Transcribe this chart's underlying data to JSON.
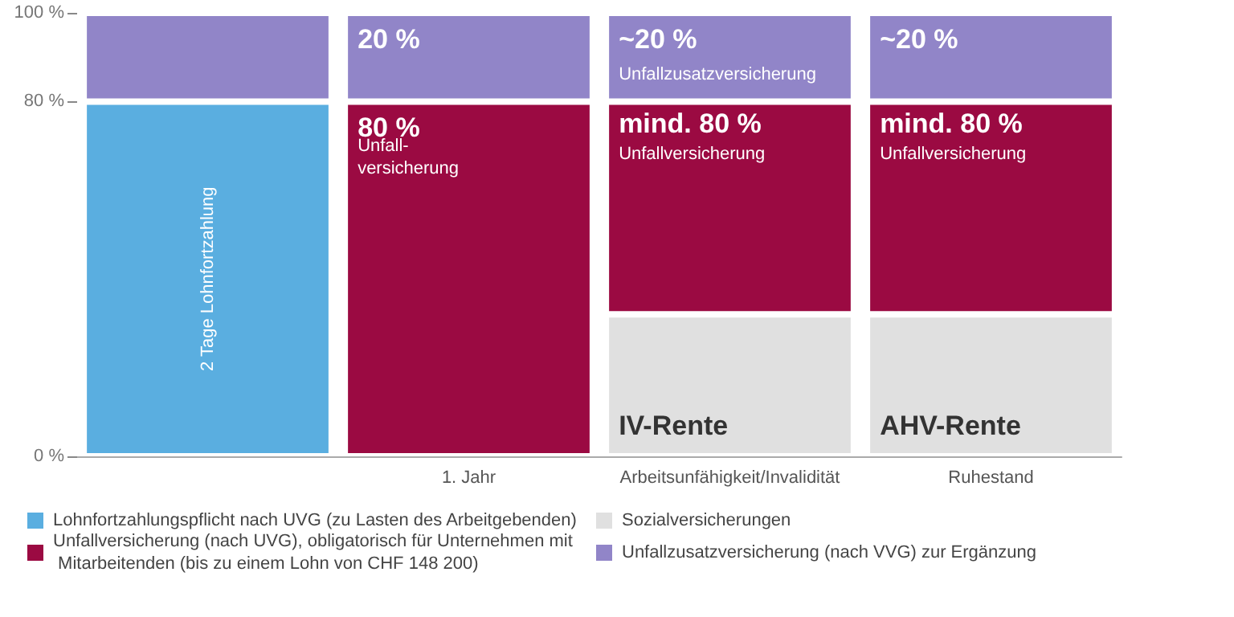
{
  "chart_data": {
    "type": "bar",
    "stacked": true,
    "categories": [
      null,
      "1. Jahr",
      "Arbeitsunfähigkeit/Invalidität",
      "Ruhestand"
    ],
    "series": [
      {
        "name": "Lohnfortzahlungspflicht nach UVG (zu Lasten des Arbeitgebenden)",
        "color": "#5aaee0",
        "values": [
          80,
          null,
          null,
          null
        ]
      },
      {
        "name": "Sozialversicherungen",
        "color": "#e0e0e0",
        "values": [
          null,
          null,
          32,
          32
        ]
      },
      {
        "name": "Unfallversicherung (nach UVG), obligatorisch für Unternehmen mit Mitarbeitenden (bis zu einem Lohn von CHF 148 200)",
        "color": "#9b0a42",
        "values": [
          null,
          80,
          48,
          48
        ],
        "value_labels": [
          null,
          "80 %",
          null,
          null
        ]
      },
      {
        "name": "Unfallzusatzversicherung (nach VVG) zur Ergänzung",
        "color": "#9185c8",
        "values": [
          20,
          20,
          20,
          20
        ],
        "value_labels": [
          null,
          "20 %",
          "~20 %",
          "~20 %"
        ]
      }
    ],
    "annotations": [
      "2 Tage Lohnfortzahlung",
      "Unfall-\nversicherung",
      "Unfallzusatzversicherung",
      {
        "text": "mind. 80 %\nUnfallversicherung",
        "x": "Arbeitsunfähigkeit/Invalidität",
        "y": 78
      },
      {
        "text": "mind. 80 %\nUnfallversicherung",
        "x": "Ruhestand",
        "y": 78
      },
      "IV-Rente",
      "AHV-Rente"
    ],
    "ylim": [
      0,
      100
    ],
    "yticks": [
      {
        "value": 0,
        "label": "0 %"
      },
      {
        "value": 80,
        "label": "80 %"
      },
      {
        "value": 100,
        "label": "100 %"
      }
    ],
    "grid": false,
    "legend": "bottom"
  }
}
